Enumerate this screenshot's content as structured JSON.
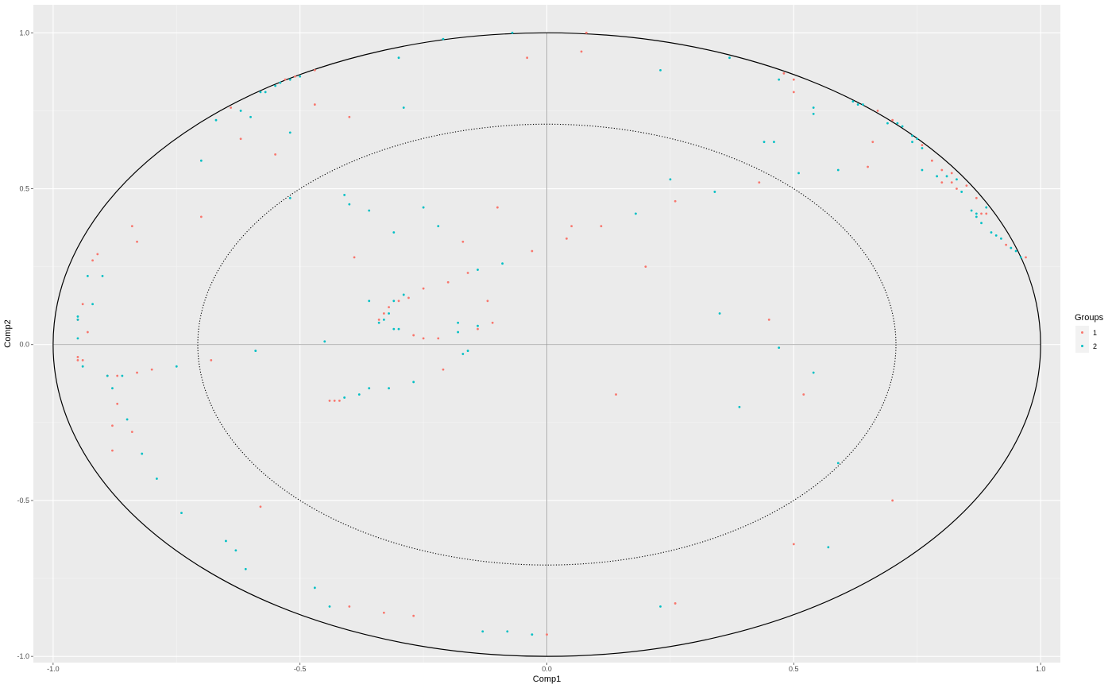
{
  "chart_data": {
    "type": "scatter",
    "title": "",
    "xlabel": "Comp1",
    "ylabel": "Comp2",
    "xlim": [
      -1.04,
      1.04
    ],
    "ylim": [
      -1.02,
      1.09
    ],
    "xticks": [
      -1.0,
      -0.5,
      0.0,
      0.5,
      1.0
    ],
    "yticks": [
      -1.0,
      -0.5,
      0.0,
      0.5,
      1.0
    ],
    "xtick_labels": [
      "-1.0",
      "-0.5",
      "0.0",
      "0.5",
      "1.0"
    ],
    "ytick_labels": [
      "-1.0",
      "-0.5",
      "0.0",
      "0.5",
      "1.0"
    ],
    "grid": true,
    "background": "#ebebeb",
    "circles": [
      {
        "radius": 1.0,
        "style": "solid"
      },
      {
        "radius": 0.707,
        "style": "dotted"
      }
    ],
    "legend": {
      "title": "Groups",
      "position": "right"
    },
    "series": [
      {
        "name": "1",
        "color": "#F8766D",
        "points": [
          [
            0.08,
            1.0
          ],
          [
            0.07,
            0.94
          ],
          [
            -0.04,
            0.92
          ],
          [
            -0.53,
            0.85
          ],
          [
            -0.51,
            0.86
          ],
          [
            -0.47,
            0.88
          ],
          [
            -0.47,
            0.77
          ],
          [
            -0.4,
            0.73
          ],
          [
            -0.64,
            0.76
          ],
          [
            -0.62,
            0.66
          ],
          [
            -0.55,
            0.61
          ],
          [
            -0.7,
            0.41
          ],
          [
            -0.84,
            0.38
          ],
          [
            -0.83,
            0.33
          ],
          [
            -0.92,
            0.27
          ],
          [
            -0.91,
            0.29
          ],
          [
            -0.94,
            0.13
          ],
          [
            -0.95,
            0.08
          ],
          [
            -0.93,
            0.04
          ],
          [
            -0.95,
            -0.04
          ],
          [
            -0.95,
            -0.05
          ],
          [
            -0.94,
            -0.05
          ],
          [
            -0.68,
            -0.05
          ],
          [
            -0.8,
            -0.08
          ],
          [
            -0.83,
            -0.09
          ],
          [
            -0.87,
            -0.1
          ],
          [
            -0.89,
            -0.1
          ],
          [
            -0.88,
            -0.26
          ],
          [
            -0.87,
            -0.19
          ],
          [
            -0.84,
            -0.28
          ],
          [
            -0.88,
            -0.34
          ],
          [
            -0.58,
            -0.52
          ],
          [
            -0.4,
            -0.84
          ],
          [
            -0.33,
            -0.86
          ],
          [
            -0.27,
            -0.87
          ],
          [
            0.0,
            -0.93
          ],
          [
            0.26,
            -0.83
          ],
          [
            0.7,
            -0.5
          ],
          [
            0.5,
            -0.64
          ],
          [
            0.52,
            -0.16
          ],
          [
            0.45,
            0.08
          ],
          [
            0.14,
            -0.16
          ],
          [
            0.2,
            0.25
          ],
          [
            0.26,
            0.46
          ],
          [
            0.11,
            0.38
          ],
          [
            0.05,
            0.38
          ],
          [
            0.04,
            0.34
          ],
          [
            -0.03,
            0.3
          ],
          [
            -0.1,
            0.44
          ],
          [
            -0.17,
            0.33
          ],
          [
            -0.16,
            0.23
          ],
          [
            -0.2,
            0.2
          ],
          [
            -0.12,
            0.14
          ],
          [
            -0.14,
            0.05
          ],
          [
            -0.11,
            0.07
          ],
          [
            -0.25,
            0.18
          ],
          [
            -0.28,
            0.15
          ],
          [
            -0.3,
            0.14
          ],
          [
            -0.32,
            0.12
          ],
          [
            -0.33,
            0.1
          ],
          [
            -0.34,
            0.08
          ],
          [
            -0.25,
            0.02
          ],
          [
            -0.22,
            0.02
          ],
          [
            -0.27,
            0.03
          ],
          [
            -0.21,
            -0.08
          ],
          [
            -0.44,
            -0.18
          ],
          [
            -0.43,
            -0.18
          ],
          [
            -0.42,
            -0.18
          ],
          [
            -0.39,
            0.28
          ],
          [
            0.43,
            0.52
          ],
          [
            0.48,
            0.87
          ],
          [
            0.5,
            0.85
          ],
          [
            0.5,
            0.81
          ],
          [
            0.65,
            0.57
          ],
          [
            0.66,
            0.65
          ],
          [
            0.67,
            0.75
          ],
          [
            0.7,
            0.72
          ],
          [
            0.76,
            0.64
          ],
          [
            0.78,
            0.59
          ],
          [
            0.8,
            0.56
          ],
          [
            0.8,
            0.52
          ],
          [
            0.82,
            0.55
          ],
          [
            0.83,
            0.5
          ],
          [
            0.85,
            0.51
          ],
          [
            0.87,
            0.47
          ],
          [
            0.88,
            0.42
          ],
          [
            0.89,
            0.42
          ],
          [
            0.93,
            0.32
          ],
          [
            0.97,
            0.28
          ],
          [
            0.82,
            0.52
          ]
        ]
      },
      {
        "name": "2",
        "color": "#00BFC4",
        "points": [
          [
            -0.07,
            1.0
          ],
          [
            -0.21,
            0.98
          ],
          [
            -0.3,
            0.92
          ],
          [
            -0.52,
            0.85
          ],
          [
            -0.5,
            0.86
          ],
          [
            -0.54,
            0.84
          ],
          [
            -0.55,
            0.83
          ],
          [
            -0.57,
            0.81
          ],
          [
            -0.58,
            0.81
          ],
          [
            -0.6,
            0.73
          ],
          [
            -0.62,
            0.75
          ],
          [
            -0.67,
            0.72
          ],
          [
            -0.52,
            0.68
          ],
          [
            -0.29,
            0.76
          ],
          [
            -0.7,
            0.59
          ],
          [
            -0.52,
            0.47
          ],
          [
            -0.41,
            0.48
          ],
          [
            -0.4,
            0.45
          ],
          [
            -0.36,
            0.43
          ],
          [
            -0.25,
            0.44
          ],
          [
            -0.22,
            0.38
          ],
          [
            -0.31,
            0.36
          ],
          [
            -0.09,
            0.26
          ],
          [
            -0.14,
            0.24
          ],
          [
            -0.93,
            0.22
          ],
          [
            -0.9,
            0.22
          ],
          [
            -0.92,
            0.13
          ],
          [
            -0.95,
            0.09
          ],
          [
            -0.95,
            0.08
          ],
          [
            -0.95,
            0.02
          ],
          [
            -0.94,
            -0.07
          ],
          [
            -0.59,
            -0.02
          ],
          [
            -0.45,
            0.01
          ],
          [
            -0.36,
            0.14
          ],
          [
            -0.29,
            0.16
          ],
          [
            -0.31,
            0.14
          ],
          [
            -0.32,
            0.1
          ],
          [
            -0.33,
            0.08
          ],
          [
            -0.34,
            0.07
          ],
          [
            -0.31,
            0.05
          ],
          [
            -0.3,
            0.05
          ],
          [
            -0.18,
            0.07
          ],
          [
            -0.18,
            0.04
          ],
          [
            -0.14,
            0.06
          ],
          [
            -0.16,
            -0.02
          ],
          [
            -0.17,
            -0.03
          ],
          [
            -0.27,
            -0.12
          ],
          [
            -0.32,
            -0.14
          ],
          [
            -0.36,
            -0.14
          ],
          [
            -0.38,
            -0.16
          ],
          [
            -0.41,
            -0.17
          ],
          [
            -0.89,
            -0.1
          ],
          [
            -0.86,
            -0.1
          ],
          [
            -0.88,
            -0.14
          ],
          [
            -0.85,
            -0.24
          ],
          [
            -0.82,
            -0.35
          ],
          [
            -0.79,
            -0.43
          ],
          [
            -0.74,
            -0.54
          ],
          [
            -0.75,
            -0.07
          ],
          [
            -0.65,
            -0.63
          ],
          [
            -0.63,
            -0.66
          ],
          [
            -0.61,
            -0.72
          ],
          [
            -0.47,
            -0.78
          ],
          [
            -0.44,
            -0.84
          ],
          [
            -0.13,
            -0.92
          ],
          [
            -0.08,
            -0.92
          ],
          [
            -0.03,
            -0.93
          ],
          [
            0.23,
            -0.84
          ],
          [
            0.39,
            -0.2
          ],
          [
            0.35,
            0.1
          ],
          [
            0.47,
            -0.01
          ],
          [
            0.54,
            -0.09
          ],
          [
            0.57,
            -0.65
          ],
          [
            0.59,
            -0.38
          ],
          [
            0.18,
            0.42
          ],
          [
            0.25,
            0.53
          ],
          [
            0.34,
            0.49
          ],
          [
            0.23,
            0.88
          ],
          [
            0.37,
            0.92
          ],
          [
            0.47,
            0.85
          ],
          [
            0.44,
            0.65
          ],
          [
            0.46,
            0.65
          ],
          [
            0.51,
            0.55
          ],
          [
            0.54,
            0.76
          ],
          [
            0.54,
            0.74
          ],
          [
            0.59,
            0.56
          ],
          [
            0.62,
            0.78
          ],
          [
            0.63,
            0.77
          ],
          [
            0.64,
            0.77
          ],
          [
            0.69,
            0.71
          ],
          [
            0.71,
            0.71
          ],
          [
            0.72,
            0.7
          ],
          [
            0.74,
            0.67
          ],
          [
            0.75,
            0.66
          ],
          [
            0.76,
            0.63
          ],
          [
            0.74,
            0.65
          ],
          [
            0.79,
            0.54
          ],
          [
            0.81,
            0.54
          ],
          [
            0.83,
            0.53
          ],
          [
            0.84,
            0.49
          ],
          [
            0.86,
            0.43
          ],
          [
            0.87,
            0.42
          ],
          [
            0.87,
            0.41
          ],
          [
            0.88,
            0.39
          ],
          [
            0.89,
            0.44
          ],
          [
            0.9,
            0.36
          ],
          [
            0.91,
            0.35
          ],
          [
            0.92,
            0.34
          ],
          [
            0.94,
            0.31
          ],
          [
            0.95,
            0.3
          ],
          [
            0.96,
            0.28
          ],
          [
            0.76,
            0.56
          ]
        ]
      }
    ]
  }
}
